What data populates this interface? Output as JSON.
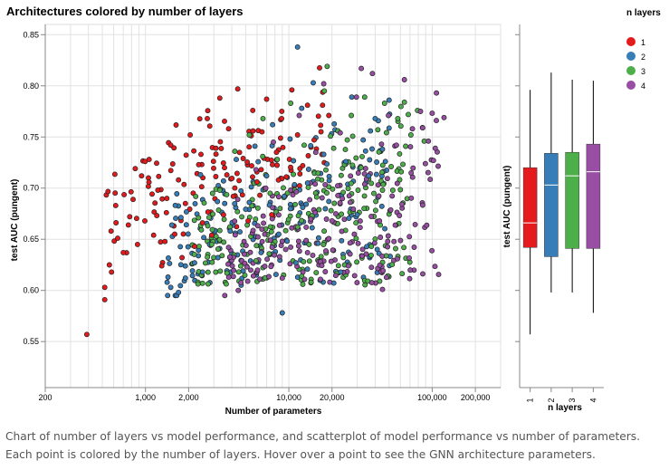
{
  "chart_data": [
    {
      "type": "scatter",
      "title": "Architectures colored by number of layers",
      "xlabel": "Number of parameters",
      "ylabel": "test AUC (pungent)",
      "xscale": "log",
      "xlim": [
        200,
        300000
      ],
      "ylim": [
        0.505,
        0.86
      ],
      "x_tick_labels": [
        "200",
        "1,000",
        "2,000",
        "10,000",
        "20,000",
        "100,000",
        "200,000"
      ],
      "x_tick_values": [
        200,
        1000,
        2000,
        10000,
        20000,
        100000,
        200000
      ],
      "y_ticks": [
        0.55,
        0.6,
        0.65,
        0.7,
        0.75,
        0.8,
        0.85
      ],
      "y_tick_labels": [
        "0.55",
        "0.60",
        "0.65",
        "0.70",
        "0.75",
        "0.80",
        "0.85"
      ],
      "grid": true,
      "note": "approximately 1000 points; coordinates estimated from the image",
      "series": [
        {
          "name": "1",
          "color": "#e41a1c",
          "points": [
            [
              390,
              0.557
            ],
            [
              520,
              0.591
            ],
            [
              520,
              0.603
            ],
            [
              560,
              0.625
            ],
            [
              580,
              0.618
            ],
            [
              620,
              0.683
            ],
            [
              640,
              0.651
            ],
            [
              700,
              0.637
            ],
            [
              760,
              0.664
            ],
            [
              820,
              0.689
            ],
            [
              880,
              0.645
            ],
            [
              940,
              0.712
            ],
            [
              990,
              0.668
            ],
            [
              1060,
              0.728
            ],
            [
              1140,
              0.654
            ],
            [
              1220,
              0.698
            ],
            [
              1300,
              0.624
            ],
            [
              1400,
              0.676
            ],
            [
              1500,
              0.742
            ],
            [
              1600,
              0.655
            ],
            [
              1700,
              0.708
            ],
            [
              1800,
              0.632
            ],
            [
              1900,
              0.685
            ],
            [
              2050,
              0.752
            ],
            [
              2200,
              0.643
            ],
            [
              2350,
              0.723
            ],
            [
              2500,
              0.666
            ],
            [
              2700,
              0.768
            ],
            [
              2900,
              0.654
            ],
            [
              3100,
              0.739
            ],
            [
              3300,
              0.788
            ],
            [
              3500,
              0.674
            ],
            [
              3800,
              0.758
            ],
            [
              4100,
              0.692
            ],
            [
              4400,
              0.797
            ],
            [
              4800,
              0.729
            ],
            [
              5200,
              0.668
            ],
            [
              5600,
              0.776
            ],
            [
              6000,
              0.706
            ],
            [
              6500,
              0.755
            ],
            [
              7000,
              0.787
            ],
            [
              7600,
              0.674
            ],
            [
              8200,
              0.735
            ],
            [
              8900,
              0.768
            ],
            [
              9600,
              0.711
            ],
            [
              10500,
              0.796
            ],
            [
              11500,
              0.752
            ],
            [
              12500,
              0.722
            ],
            [
              13500,
              0.781
            ],
            [
              15000,
              0.747
            ],
            [
              17000,
              0.733
            ],
            [
              19000,
              0.771
            ]
          ]
        },
        {
          "name": "2",
          "color": "#377eb8",
          "points": [
            [
              1500,
              0.603
            ],
            [
              1700,
              0.598
            ],
            [
              1900,
              0.612
            ],
            [
              2200,
              0.627
            ],
            [
              2500,
              0.618
            ],
            [
              2800,
              0.645
            ],
            [
              3200,
              0.632
            ],
            [
              3500,
              0.707
            ],
            [
              3900,
              0.658
            ],
            [
              4300,
              0.728
            ],
            [
              4800,
              0.619
            ],
            [
              5300,
              0.686
            ],
            [
              5800,
              0.741
            ],
            [
              6400,
              0.637
            ],
            [
              7000,
              0.712
            ],
            [
              7700,
              0.762
            ],
            [
              8500,
              0.655
            ],
            [
              9300,
              0.692
            ],
            [
              10200,
              0.748
            ],
            [
              11200,
              0.627
            ],
            [
              12300,
              0.778
            ],
            [
              13500,
              0.705
            ],
            [
              14800,
              0.803
            ],
            [
              16000,
              0.646
            ],
            [
              17500,
              0.733
            ],
            [
              19000,
              0.687
            ],
            [
              21000,
              0.757
            ],
            [
              23000,
              0.618
            ],
            [
              25000,
              0.726
            ],
            [
              27500,
              0.789
            ],
            [
              30000,
              0.674
            ],
            [
              33000,
              0.747
            ],
            [
              36000,
              0.712
            ],
            [
              40000,
              0.768
            ],
            [
              45000,
              0.738
            ],
            [
              50000,
              0.786
            ],
            [
              11500,
              0.838
            ],
            [
              9000,
              0.578
            ]
          ]
        },
        {
          "name": "3",
          "color": "#4daf4a",
          "points": [
            [
              2500,
              0.607
            ],
            [
              2900,
              0.645
            ],
            [
              3300,
              0.698
            ],
            [
              3700,
              0.617
            ],
            [
              4200,
              0.736
            ],
            [
              4700,
              0.672
            ],
            [
              5300,
              0.752
            ],
            [
              5900,
              0.629
            ],
            [
              6600,
              0.768
            ],
            [
              7400,
              0.695
            ],
            [
              8300,
              0.728
            ],
            [
              9200,
              0.615
            ],
            [
              10300,
              0.783
            ],
            [
              11500,
              0.662
            ],
            [
              12800,
              0.742
            ],
            [
              14300,
              0.608
            ],
            [
              15900,
              0.709
            ],
            [
              17700,
              0.795
            ],
            [
              19700,
              0.678
            ],
            [
              22000,
              0.756
            ],
            [
              24500,
              0.625
            ],
            [
              27300,
              0.771
            ],
            [
              30400,
              0.698
            ],
            [
              33800,
              0.789
            ],
            [
              37600,
              0.643
            ],
            [
              41800,
              0.757
            ],
            [
              46500,
              0.783
            ],
            [
              51700,
              0.721
            ],
            [
              57500,
              0.768
            ],
            [
              64000,
              0.784
            ],
            [
              71000,
              0.752
            ],
            [
              79000,
              0.776
            ],
            [
              88000,
              0.746
            ],
            [
              18500,
              0.819
            ]
          ]
        },
        {
          "name": "4",
          "color": "#984ea3",
          "points": [
            [
              3800,
              0.642
            ],
            [
              4400,
              0.689
            ],
            [
              5100,
              0.623
            ],
            [
              5900,
              0.718
            ],
            [
              6800,
              0.655
            ],
            [
              7800,
              0.745
            ],
            [
              9000,
              0.612
            ],
            [
              10300,
              0.698
            ],
            [
              11800,
              0.771
            ],
            [
              13500,
              0.637
            ],
            [
              15400,
              0.735
            ],
            [
              17500,
              0.802
            ],
            [
              20000,
              0.668
            ],
            [
              22800,
              0.754
            ],
            [
              26000,
              0.624
            ],
            [
              29600,
              0.789
            ],
            [
              33700,
              0.714
            ],
            [
              38300,
              0.812
            ],
            [
              43500,
              0.652
            ],
            [
              49500,
              0.771
            ],
            [
              56300,
              0.742
            ],
            [
              64000,
              0.806
            ],
            [
              72800,
              0.758
            ],
            [
              82800,
              0.775
            ],
            [
              94000,
              0.746
            ],
            [
              107000,
              0.793
            ],
            [
              121000,
              0.769
            ],
            [
              105000,
              0.739
            ],
            [
              32000,
              0.817
            ],
            [
              45000,
              0.601
            ]
          ]
        }
      ]
    },
    {
      "type": "box",
      "xlabel": "n layers",
      "ylabel": "test AUC (pungent)",
      "categories": [
        "1",
        "2",
        "3",
        "4"
      ],
      "colors": [
        "#e41a1c",
        "#377eb8",
        "#4daf4a",
        "#984ea3"
      ],
      "boxes": [
        {
          "min": 0.557,
          "q1": 0.642,
          "median": 0.666,
          "q3": 0.72,
          "max": 0.796
        },
        {
          "min": 0.598,
          "q1": 0.633,
          "median": 0.703,
          "q3": 0.734,
          "max": 0.813
        },
        {
          "min": 0.598,
          "q1": 0.641,
          "median": 0.712,
          "q3": 0.735,
          "max": 0.806
        },
        {
          "min": 0.578,
          "q1": 0.641,
          "median": 0.716,
          "q3": 0.743,
          "max": 0.805
        }
      ]
    }
  ],
  "legend": {
    "title": "n layers",
    "items": [
      {
        "label": "1",
        "color": "#e41a1c"
      },
      {
        "label": "2",
        "color": "#377eb8"
      },
      {
        "label": "3",
        "color": "#4daf4a"
      },
      {
        "label": "4",
        "color": "#984ea3"
      }
    ]
  },
  "caption": "Chart of number of layers vs model performance, and scatterplot of model performance vs number of parameters. Each point is colored by the number of layers. Hover over a point to see the GNN architecture parameters."
}
